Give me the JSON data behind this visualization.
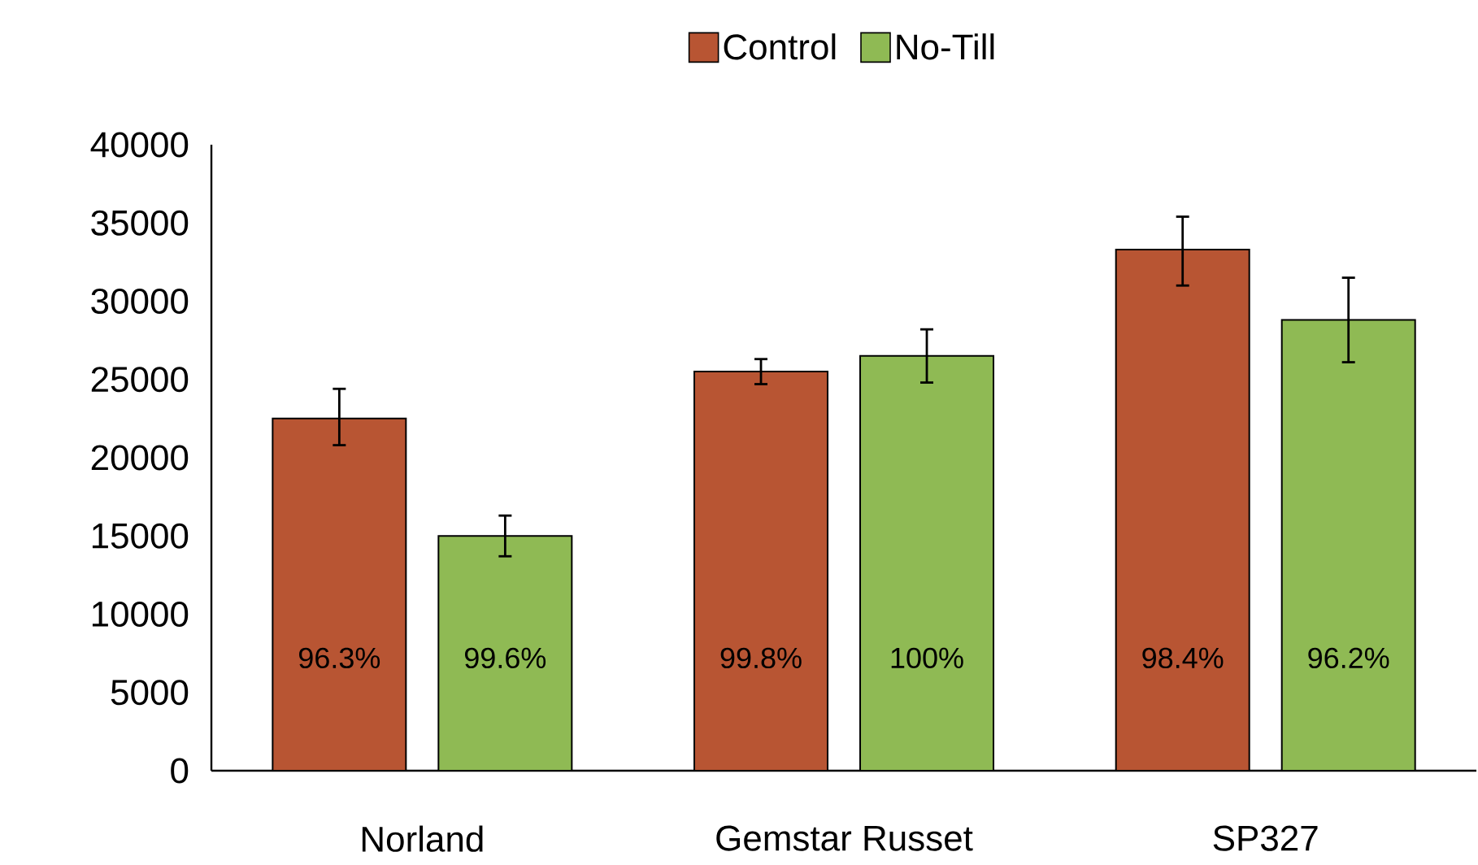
{
  "chart_data": {
    "type": "bar",
    "categories": [
      "Norland",
      "Gemstar Russet",
      "SP327"
    ],
    "series": [
      {
        "name": "Control",
        "color": "#b85533",
        "values": [
          22500,
          25500,
          33300
        ],
        "errors": [
          [
            20800,
            24400
          ],
          [
            24700,
            26300
          ],
          [
            31000,
            35400
          ]
        ]
      },
      {
        "name": "No-Till",
        "color": "#8fba54",
        "values": [
          15000,
          26500,
          28800
        ],
        "errors": [
          [
            13700,
            16300
          ],
          [
            24800,
            28200
          ],
          [
            26100,
            31500
          ]
        ]
      }
    ],
    "annotations": [
      "96.3%",
      "99.6%",
      "99.8%",
      "100%",
      "98.4%",
      "96.2%"
    ],
    "ylim": [
      0,
      40000
    ],
    "yticks": [
      0,
      5000,
      10000,
      15000,
      20000,
      25000,
      30000,
      35000,
      40000
    ],
    "grid": false,
    "legend": "top"
  }
}
